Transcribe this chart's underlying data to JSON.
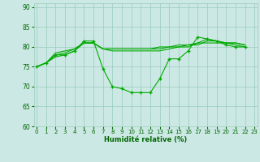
{
  "xlabel": "Humidité relative (%)",
  "bg_color": "#cce8e4",
  "grid_color": "#99ccbb",
  "line_color": "#00aa00",
  "xlim": [
    -0.3,
    23.3
  ],
  "ylim": [
    60,
    91
  ],
  "yticks": [
    60,
    65,
    70,
    75,
    80,
    85,
    90
  ],
  "xticks": [
    0,
    1,
    2,
    3,
    4,
    5,
    6,
    7,
    8,
    9,
    10,
    11,
    12,
    13,
    14,
    15,
    16,
    17,
    18,
    19,
    20,
    21,
    22,
    23
  ],
  "series_marked": [
    75,
    76,
    78,
    78,
    79,
    81.5,
    81.5,
    74.5,
    70,
    69.5,
    68.5,
    68.5,
    68.5,
    72,
    77,
    77,
    79,
    82.5,
    82,
    81.5,
    80.5,
    80,
    80
  ],
  "series1": [
    75,
    76,
    78.5,
    79,
    79.5,
    81,
    81,
    79.5,
    79.5,
    79.5,
    79.5,
    79.5,
    79.5,
    80,
    80,
    80.5,
    80.5,
    81,
    81,
    81,
    81,
    81,
    80.5
  ],
  "series2": [
    75,
    76,
    78,
    78.5,
    79.5,
    81,
    81,
    79.5,
    79.5,
    79.5,
    79.5,
    79.5,
    79.5,
    79.5,
    80,
    80,
    80.5,
    80.5,
    81.5,
    81.5,
    81,
    81,
    80.5
  ],
  "series3": [
    75,
    76,
    77.5,
    78,
    79,
    81,
    81,
    79.5,
    79,
    79,
    79,
    79,
    79,
    79,
    79.5,
    80,
    80,
    81,
    82,
    81.5,
    81,
    80.5,
    80
  ]
}
